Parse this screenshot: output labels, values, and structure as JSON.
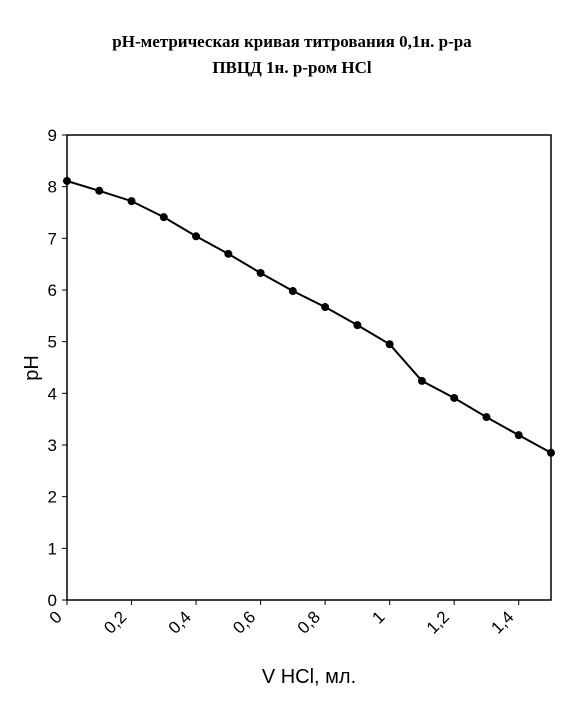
{
  "chart_data": {
    "type": "line",
    "title": [
      "pH-метрическая кривая титрования 0,1н. р-ра",
      "ПВЦД 1н. р-ром HCl"
    ],
    "x_label": "V HCl, мл.",
    "y_label": "pH",
    "x": [
      0,
      0.1,
      0.2,
      0.3,
      0.4,
      0.5,
      0.6,
      0.7,
      0.8,
      0.9,
      1.0,
      1.1,
      1.2,
      1.3,
      1.4,
      1.5
    ],
    "series": [
      {
        "name": "pH",
        "color": "#000000",
        "values": [
          8.11,
          7.92,
          7.72,
          7.41,
          7.04,
          6.7,
          6.33,
          5.98,
          5.67,
          5.32,
          4.95,
          4.24,
          3.91,
          3.54,
          3.19,
          2.85
        ]
      }
    ],
    "xlim": [
      0,
      1.5
    ],
    "xticks": [
      0,
      {
        "value": 0.2,
        "label": "0,2"
      },
      {
        "value": 0.4,
        "label": "0,4"
      },
      {
        "value": 0.6,
        "label": "0,6"
      },
      {
        "value": 0.8,
        "label": "0,8"
      },
      1,
      {
        "value": 1.2,
        "label": "1,2"
      },
      {
        "value": 1.4,
        "label": "1,4"
      }
    ],
    "ylim": [
      0,
      9
    ],
    "yticks": [
      0,
      1,
      2,
      3,
      4,
      5,
      6,
      7,
      8,
      9
    ],
    "grid": false
  }
}
